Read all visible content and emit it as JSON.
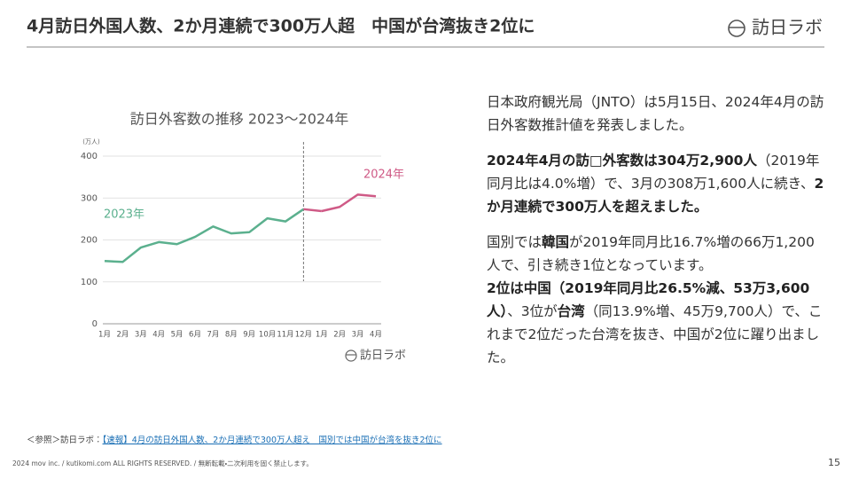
{
  "header": {
    "title": "4月訪日外国人数、2か月連続で300万人超　中国が台湾抜き2位に",
    "logo": "訪日ラボ"
  },
  "chart_data": {
    "type": "line",
    "title": "訪日外客数の推移 2023〜2024年",
    "y_unit": "(万人)",
    "categories": [
      "1月",
      "2月",
      "3月",
      "4月",
      "5月",
      "6月",
      "7月",
      "8月",
      "9月",
      "10月",
      "11月",
      "12月",
      "1月",
      "2月",
      "3月",
      "4月"
    ],
    "series": [
      {
        "name": "2023年",
        "color": "#5bb08e",
        "values": [
          149.7,
          147.5,
          181.8,
          194.9,
          189.9,
          207.3,
          232.1,
          215.6,
          218.4,
          251.6,
          244.1,
          273.4,
          null,
          null,
          null,
          null
        ]
      },
      {
        "name": "2024年",
        "color": "#cf5a86",
        "values": [
          null,
          null,
          null,
          null,
          null,
          null,
          null,
          null,
          null,
          null,
          null,
          null,
          268.8,
          278.8,
          308.2,
          304.3
        ]
      }
    ],
    "ylim": [
      0,
      400
    ],
    "yticks": [
      0,
      100,
      200,
      300,
      400
    ],
    "grid": true,
    "logo": "訪日ラボ"
  },
  "body": {
    "paragraphs": [
      [
        {
          "text": "日本政府観光局（JNTO）は5月15日、2024年4月の訪日外客数推計値を発表しました。",
          "bold": false
        }
      ],
      [
        {
          "text": "2024年4月の訪□外客数は304万2,900人",
          "bold": true
        },
        {
          "text": "（2019年同月比は4.0%増）で、3月の308万1,600人に続き、",
          "bold": false
        },
        {
          "text": "2か月連続で300万人を超えました。",
          "bold": true
        }
      ],
      [
        {
          "text": "国別では",
          "bold": false
        },
        {
          "text": "韓国",
          "bold": true
        },
        {
          "text": "が2019年同月比16.7%増の66万1,200人で、引き続き1位となっています。",
          "bold": false
        }
      ],
      [
        {
          "text": "2位は中国（2019年同月比26.5%減、53万3,600人）",
          "bold": true
        },
        {
          "text": "、3位が",
          "bold": false
        },
        {
          "text": "台湾",
          "bold": true
        },
        {
          "text": "（同13.9%増、45万9,700人）で、これまで2位だった台湾を抜き、中国が2位に躍り出ました。",
          "bold": false
        }
      ]
    ]
  },
  "reference": {
    "prefix": "＜参照＞訪日ラボ：",
    "link": "【速報】4月の訪日外国人数、2か月連続で300万人超え　国別では中国が台湾を抜き2位に"
  },
  "footer": {
    "copyright": "2024 mov inc. / kutikomi.com ALL RIGHTS RESERVED. / 無断転載・二次利用を固く禁止します。",
    "page": "15"
  }
}
